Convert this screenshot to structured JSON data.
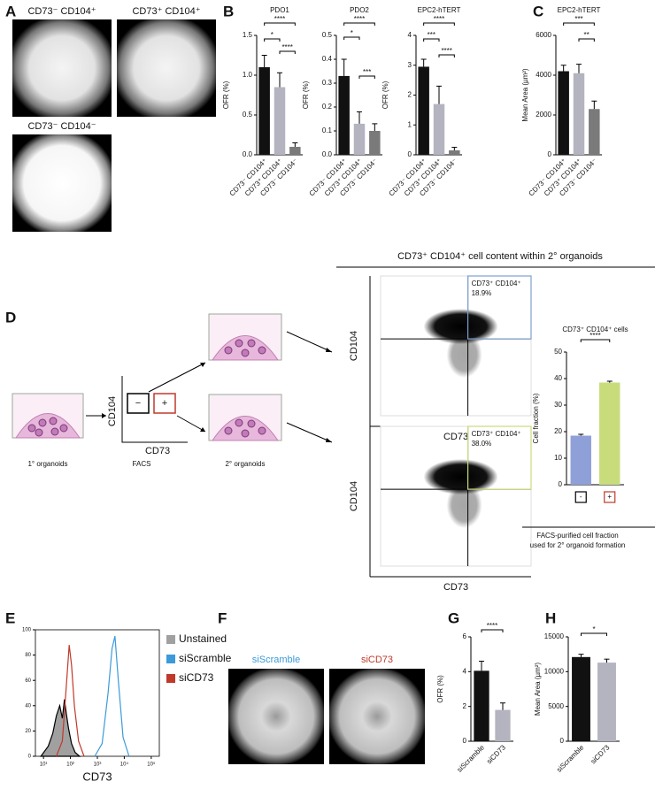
{
  "panels": [
    "A",
    "B",
    "C",
    "D",
    "E",
    "F",
    "G",
    "H"
  ],
  "images_a": [
    "CD73⁻ CD104⁺",
    "CD73⁺ CD104⁺",
    "CD73⁻ CD104⁻"
  ],
  "schematic": {
    "first": "1° organoids",
    "facs": "FACS",
    "second": "2° organoids",
    "y_axis": "CD104",
    "x_axis": "CD73",
    "neg": "−",
    "pos": "+"
  },
  "flow": {
    "title": "CD73⁺ CD104⁺ cell content within 2° organoids",
    "x_label": "CD73",
    "y_label": "CD104",
    "plots": [
      {
        "gate": "CD73⁺ CD104⁺",
        "percent": "18.9%"
      },
      {
        "gate": "CD73⁺ CD104⁺",
        "percent": "38.0%"
      }
    ]
  },
  "images_f": [
    "siScramble",
    "siCD73"
  ],
  "chart_data": [
    {
      "type": "bar",
      "title": "PDO1",
      "ylabel": "OFR (%)",
      "categories": [
        "CD73⁻ CD104⁺",
        "CD73⁺ CD104⁺",
        "CD73⁻ CD104⁻"
      ],
      "values": [
        1.1,
        0.85,
        0.1
      ],
      "errors": [
        0.15,
        0.18,
        0.05
      ],
      "colors": [
        "#111111",
        "#b4b4c0",
        "#7a7a7a"
      ],
      "ylim": [
        0,
        1.5
      ],
      "yticks": [
        {
          "value": 0,
          "label": "0.0"
        },
        0.5,
        {
          "value": 1,
          "label": "1.0"
        },
        1.5
      ],
      "annotations": [
        "****",
        "*",
        "****"
      ]
    },
    {
      "type": "bar",
      "title": "PDO2",
      "ylabel": "OFR (%)",
      "categories": [
        "CD73⁻ CD104⁺",
        "CD73⁺ CD104⁺",
        "CD73⁻ CD104⁻"
      ],
      "values": [
        0.33,
        0.13,
        0.1
      ],
      "errors": [
        0.07,
        0.05,
        0.03
      ],
      "colors": [
        "#111111",
        "#b4b4c0",
        "#7a7a7a"
      ],
      "ylim": [
        0,
        0.5
      ],
      "yticks": [
        {
          "value": 0,
          "label": "0.0"
        },
        0.1,
        0.2,
        0.3,
        0.4,
        0.5
      ],
      "annotations": [
        "****",
        "*",
        "***"
      ]
    },
    {
      "type": "bar",
      "title": "EPC2-hTERT",
      "ylabel": "OFR (%)",
      "categories": [
        "CD73⁻ CD104⁺",
        "CD73⁺ CD104⁺",
        "CD73⁻ CD104⁻"
      ],
      "values": [
        2.95,
        1.7,
        0.15
      ],
      "errors": [
        0.25,
        0.6,
        0.1
      ],
      "colors": [
        "#111111",
        "#b4b4c0",
        "#7a7a7a"
      ],
      "ylim": [
        0,
        4
      ],
      "yticks": [
        0,
        1,
        2,
        3,
        4
      ],
      "annotations": [
        "****",
        "***",
        "****"
      ]
    },
    {
      "type": "bar",
      "title": "EPC2-hTERT",
      "ylabel": "Mean Area (µm²)",
      "categories": [
        "CD73⁻ CD104⁺",
        "CD73⁺ CD104⁺",
        "CD73⁻ CD104⁻"
      ],
      "values": [
        4200,
        4100,
        2300
      ],
      "errors": [
        300,
        450,
        400
      ],
      "colors": [
        "#111111",
        "#b4b4c0",
        "#7a7a7a"
      ],
      "ylim": [
        0,
        6000
      ],
      "yticks": [
        0,
        2000,
        4000,
        6000
      ],
      "annotations": [
        "***",
        "**"
      ]
    },
    {
      "type": "bar",
      "title": "CD73⁺ CD104⁺ cells",
      "ylabel": "Cell fraction (%)",
      "categories": [
        "-",
        "+"
      ],
      "values": [
        18.5,
        38.5
      ],
      "errors": [
        0.5,
        0.5
      ],
      "colors": [
        "#8fa0d8",
        "#c8dc7c"
      ],
      "ylim": [
        0,
        50
      ],
      "yticks": [
        0,
        10,
        20,
        30,
        40,
        50
      ],
      "annotations": [
        "****"
      ],
      "footnote": [
        "FACS-purified cell fraction",
        "used for 2° organoid formation"
      ]
    },
    {
      "type": "line",
      "xlabel": "CD73",
      "log_x": true,
      "xlim": [
        5,
        200000
      ],
      "xticks": [
        {
          "value": 10,
          "label": "10¹"
        },
        {
          "value": 100,
          "label": "10²"
        },
        {
          "value": 1000,
          "label": "10³"
        },
        {
          "value": 10000,
          "label": "10⁴"
        },
        {
          "value": 100000,
          "label": "10⁵"
        }
      ],
      "ylim": [
        0,
        100
      ],
      "yticks": [
        0,
        20,
        40,
        60,
        80,
        100
      ],
      "series": [
        {
          "name": "Unstained",
          "color": "#a0a0a0",
          "filled": true,
          "x": [
            8,
            15,
            22,
            30,
            40,
            50,
            60,
            70,
            85,
            110,
            150,
            220
          ],
          "values": [
            0,
            8,
            18,
            32,
            40,
            30,
            45,
            34,
            22,
            10,
            3,
            0
          ]
        },
        {
          "name": "siScramble",
          "color": "#3b9ad9",
          "filled": false,
          "x": [
            800,
            1500,
            2500,
            3500,
            4500,
            6000,
            9000,
            15000
          ],
          "values": [
            0,
            10,
            50,
            85,
            95,
            60,
            15,
            0
          ]
        },
        {
          "name": "siCD73",
          "color": "#c0392b",
          "filled": false,
          "x": [
            30,
            50,
            70,
            90,
            110,
            140,
            200,
            320
          ],
          "values": [
            0,
            12,
            55,
            88,
            72,
            40,
            12,
            0
          ]
        }
      ]
    },
    {
      "type": "bar",
      "ylabel": "OFR (%)",
      "categories": [
        "siScramble",
        "siCD73"
      ],
      "values": [
        4.05,
        1.8
      ],
      "errors": [
        0.55,
        0.4
      ],
      "colors": [
        "#111111",
        "#b4b4c0"
      ],
      "ylim": [
        0,
        6
      ],
      "yticks": [
        0,
        2,
        4,
        6
      ],
      "annotations": [
        "****"
      ]
    },
    {
      "type": "bar",
      "ylabel": "Mean Area (µm²)",
      "categories": [
        "siScramble",
        "siCD73"
      ],
      "values": [
        12100,
        11300
      ],
      "errors": [
        400,
        500
      ],
      "colors": [
        "#111111",
        "#b4b4c0"
      ],
      "ylim": [
        0,
        15000
      ],
      "yticks": [
        0,
        5000,
        10000,
        15000
      ],
      "annotations": [
        "*"
      ]
    }
  ]
}
